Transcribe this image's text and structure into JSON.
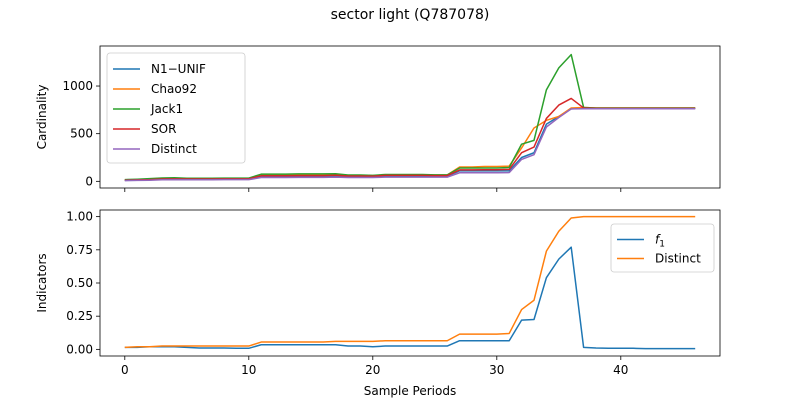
{
  "title": "sector light (Q787078)",
  "xlabel": "Sample Periods",
  "chart_data": [
    {
      "type": "line",
      "ylabel": "Cardinality",
      "xlim": [
        -2,
        48
      ],
      "ylim": [
        -70,
        1420
      ],
      "xticks": [
        0,
        10,
        20,
        30,
        40
      ],
      "yticks": [
        0,
        500,
        1000
      ],
      "show_xtick_labels": false,
      "legend": "top-left",
      "x": [
        0,
        1,
        2,
        3,
        4,
        5,
        6,
        7,
        8,
        9,
        10,
        11,
        12,
        13,
        14,
        15,
        16,
        17,
        18,
        19,
        20,
        21,
        22,
        23,
        24,
        25,
        26,
        27,
        28,
        29,
        30,
        31,
        32,
        33,
        34,
        35,
        36,
        37,
        38,
        39,
        40,
        41,
        42,
        43,
        44,
        45,
        46
      ],
      "series": [
        {
          "name": "N1−UNIF",
          "color": "#1f77b4",
          "values": [
            10,
            12,
            15,
            20,
            22,
            20,
            20,
            20,
            22,
            22,
            22,
            50,
            50,
            50,
            52,
            52,
            52,
            55,
            50,
            50,
            50,
            55,
            55,
            55,
            55,
            55,
            55,
            110,
            110,
            110,
            110,
            110,
            250,
            300,
            600,
            680,
            760,
            765,
            765,
            765,
            765,
            765,
            765,
            765,
            765,
            765,
            765
          ]
        },
        {
          "name": "Chao92",
          "color": "#ff7f0e",
          "values": [
            15,
            18,
            22,
            28,
            30,
            28,
            28,
            28,
            30,
            30,
            30,
            65,
            65,
            65,
            68,
            68,
            68,
            72,
            62,
            62,
            60,
            68,
            68,
            68,
            68,
            66,
            66,
            150,
            150,
            155,
            155,
            160,
            350,
            560,
            640,
            680,
            770,
            775,
            770,
            770,
            770,
            770,
            770,
            770,
            770,
            770,
            770
          ]
        },
        {
          "name": "Jack1",
          "color": "#2ca02c",
          "values": [
            18,
            22,
            28,
            35,
            38,
            32,
            32,
            32,
            34,
            34,
            34,
            75,
            75,
            75,
            78,
            78,
            78,
            80,
            66,
            66,
            62,
            72,
            72,
            72,
            72,
            68,
            68,
            140,
            140,
            140,
            140,
            145,
            390,
            430,
            960,
            1190,
            1330,
            775,
            770,
            770,
            770,
            770,
            770,
            770,
            770,
            770,
            770
          ]
        },
        {
          "name": "SOR",
          "color": "#d62728",
          "values": [
            12,
            15,
            18,
            24,
            26,
            24,
            24,
            24,
            26,
            26,
            26,
            58,
            58,
            58,
            60,
            60,
            60,
            64,
            56,
            56,
            54,
            62,
            62,
            62,
            62,
            60,
            60,
            120,
            120,
            122,
            122,
            125,
            300,
            360,
            660,
            800,
            870,
            770,
            765,
            765,
            765,
            765,
            765,
            765,
            765,
            765,
            765
          ]
        },
        {
          "name": "Distinct",
          "color": "#9467bd",
          "values": [
            8,
            10,
            12,
            16,
            18,
            17,
            17,
            17,
            18,
            18,
            18,
            40,
            40,
            40,
            42,
            42,
            42,
            44,
            40,
            40,
            40,
            44,
            44,
            44,
            44,
            44,
            44,
            90,
            90,
            90,
            90,
            92,
            230,
            280,
            570,
            670,
            760,
            762,
            762,
            762,
            762,
            762,
            762,
            762,
            762,
            762,
            762
          ]
        }
      ]
    },
    {
      "type": "line",
      "ylabel": "Indicators",
      "xlim": [
        -2,
        48
      ],
      "ylim": [
        -0.05,
        1.05
      ],
      "xticks": [
        0,
        10,
        20,
        30,
        40
      ],
      "yticks": [
        0.0,
        0.25,
        0.5,
        0.75,
        1.0
      ],
      "ytick_labels": [
        "0.00",
        "0.25",
        "0.50",
        "0.75",
        "1.00"
      ],
      "show_xtick_labels": true,
      "legend": "top-right",
      "x": [
        0,
        1,
        2,
        3,
        4,
        5,
        6,
        7,
        8,
        9,
        10,
        11,
        12,
        13,
        14,
        15,
        16,
        17,
        18,
        19,
        20,
        21,
        22,
        23,
        24,
        25,
        26,
        27,
        28,
        29,
        30,
        31,
        32,
        33,
        34,
        35,
        36,
        37,
        38,
        39,
        40,
        41,
        42,
        43,
        44,
        45,
        46
      ],
      "series": [
        {
          "name": "f1",
          "name_base": "f",
          "name_sub": "1",
          "color": "#1f77b4",
          "values": [
            0.015,
            0.015,
            0.02,
            0.02,
            0.02,
            0.015,
            0.01,
            0.01,
            0.01,
            0.008,
            0.008,
            0.035,
            0.035,
            0.035,
            0.035,
            0.035,
            0.035,
            0.035,
            0.025,
            0.025,
            0.02,
            0.025,
            0.025,
            0.025,
            0.025,
            0.025,
            0.025,
            0.065,
            0.065,
            0.065,
            0.065,
            0.065,
            0.22,
            0.225,
            0.54,
            0.68,
            0.77,
            0.015,
            0.01,
            0.008,
            0.008,
            0.008,
            0.006,
            0.006,
            0.006,
            0.006,
            0.006
          ]
        },
        {
          "name": "Distinct",
          "color": "#ff7f0e",
          "values": [
            0.015,
            0.02,
            0.02,
            0.025,
            0.025,
            0.025,
            0.025,
            0.025,
            0.025,
            0.025,
            0.025,
            0.055,
            0.055,
            0.055,
            0.055,
            0.055,
            0.055,
            0.06,
            0.06,
            0.06,
            0.06,
            0.065,
            0.065,
            0.065,
            0.065,
            0.065,
            0.065,
            0.115,
            0.115,
            0.115,
            0.115,
            0.12,
            0.3,
            0.37,
            0.74,
            0.89,
            0.99,
            1.0,
            1.0,
            1.0,
            1.0,
            1.0,
            1.0,
            1.0,
            1.0,
            1.0,
            1.0
          ]
        }
      ]
    }
  ]
}
